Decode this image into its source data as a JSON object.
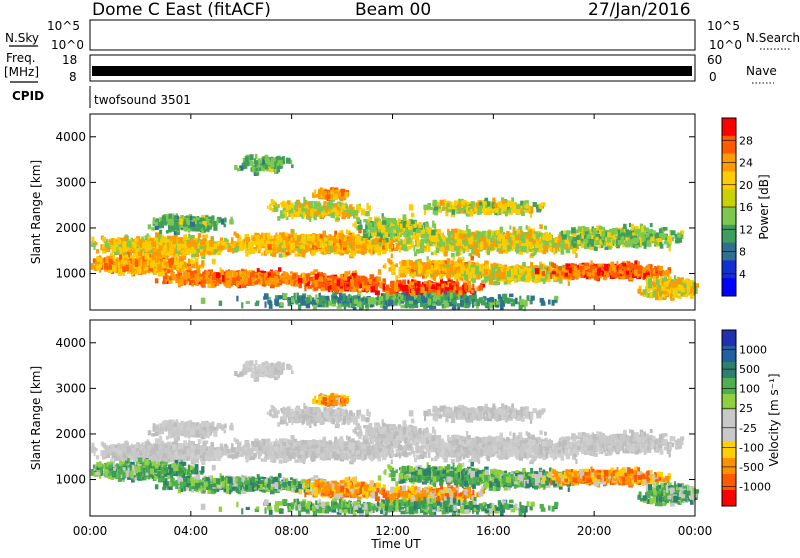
{
  "header": {
    "station": "Dome C East (fitACF)",
    "beam": "Beam 00",
    "date": "27/Jan/2016"
  },
  "strips": {
    "nsky_label": "N.Sky",
    "nsky_ticks": [
      "10^5",
      "10^0"
    ],
    "nsearch_label": "N.Search",
    "nsearch_ticks": [
      "10^5",
      "10^0"
    ],
    "freq_label": "Freq.",
    "freq_unit": "[MHz]",
    "freq_ticks": [
      "18",
      "8"
    ],
    "nave_label": "Nave",
    "nave_ticks": [
      "60",
      "0"
    ],
    "cpid_label": "CPID",
    "cpid_value": "twofsound 3501"
  },
  "chart_data": [
    {
      "type": "heatmap",
      "title": "",
      "xlabel": "",
      "ylabel": "Slant Range [km]",
      "yticks": [
        "4000",
        "3000",
        "2000",
        "1000"
      ],
      "ylim": [
        200,
        4500
      ],
      "colorbar": {
        "label": "Power [dB]",
        "ticks": [
          "28",
          "24",
          "20",
          "16",
          "12",
          "8",
          "4"
        ],
        "colors": [
          "#ff0000",
          "#ff5a00",
          "#ff9a00",
          "#ffcc00",
          "#c8d200",
          "#7cc850",
          "#3e9e5c",
          "#2f6f8f",
          "#1230d0",
          "#0000ff"
        ]
      }
    },
    {
      "type": "heatmap",
      "title": "",
      "xlabel": "Time UT",
      "ylabel": "Slant Range [km]",
      "xticks": [
        "00:00",
        "04:00",
        "08:00",
        "12:00",
        "16:00",
        "20:00",
        "00:00"
      ],
      "yticks": [
        "4000",
        "3000",
        "2000",
        "1000"
      ],
      "ylim": [
        200,
        4500
      ],
      "colorbar": {
        "label": "Velocity [m s⁻¹]",
        "ticks": [
          "1000",
          "500",
          "100",
          "25",
          "-25",
          "-100",
          "-500",
          "-1000"
        ],
        "colors": [
          "#2030b0",
          "#2060a0",
          "#2f7f6f",
          "#4caf50",
          "#8fd040",
          "#c8c8c8",
          "#c8c8c8",
          "#ffd000",
          "#ff9000",
          "#ff5a00",
          "#ff0000"
        ]
      }
    }
  ]
}
